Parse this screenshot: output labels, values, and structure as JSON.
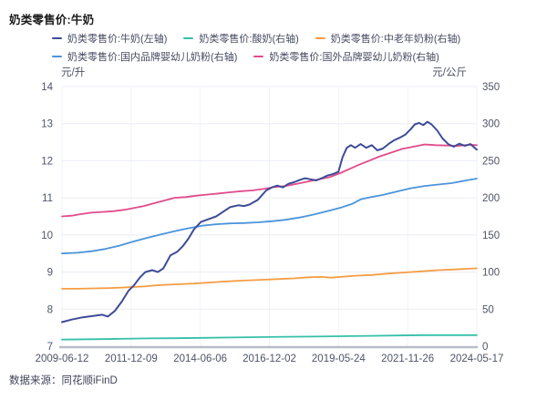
{
  "page": {
    "title": "奶类零售价:牛奶",
    "source": "数据来源：同花顺iFinD"
  },
  "chart_data": {
    "type": "line",
    "title": "奶类零售价:牛奶",
    "legend_position": "top",
    "grid": true,
    "x_ticks": [
      "2009-06-12",
      "2011-12-09",
      "2014-06-06",
      "2016-12-02",
      "2019-05-24",
      "2021-11-26",
      "2024-05-17"
    ],
    "x_range": [
      2009.45,
      2024.38
    ],
    "y_left": {
      "unit": "元/升",
      "min": 7,
      "max": 14,
      "step": 1
    },
    "y_right": {
      "unit": "元/公斤",
      "min": 0,
      "max": 350,
      "step": 50
    },
    "series": [
      {
        "name": "奶类零售价:牛奶(左轴)",
        "axis": "left",
        "unit": "元/升",
        "color": "#3e4b97",
        "points": [
          [
            2009.45,
            7.65
          ],
          [
            2009.8,
            7.72
          ],
          [
            2010.2,
            7.78
          ],
          [
            2010.6,
            7.82
          ],
          [
            2010.9,
            7.85
          ],
          [
            2011.1,
            7.8
          ],
          [
            2011.35,
            7.95
          ],
          [
            2011.6,
            8.2
          ],
          [
            2011.85,
            8.5
          ],
          [
            2012.05,
            8.65
          ],
          [
            2012.25,
            8.85
          ],
          [
            2012.45,
            9.0
          ],
          [
            2012.7,
            9.05
          ],
          [
            2012.9,
            9.0
          ],
          [
            2013.1,
            9.1
          ],
          [
            2013.35,
            9.45
          ],
          [
            2013.6,
            9.55
          ],
          [
            2013.8,
            9.7
          ],
          [
            2014.0,
            9.9
          ],
          [
            2014.2,
            10.15
          ],
          [
            2014.45,
            10.35
          ],
          [
            2014.7,
            10.42
          ],
          [
            2015.0,
            10.5
          ],
          [
            2015.2,
            10.6
          ],
          [
            2015.5,
            10.75
          ],
          [
            2015.8,
            10.8
          ],
          [
            2016.0,
            10.78
          ],
          [
            2016.2,
            10.82
          ],
          [
            2016.5,
            10.95
          ],
          [
            2016.8,
            11.2
          ],
          [
            2017.0,
            11.28
          ],
          [
            2017.2,
            11.33
          ],
          [
            2017.4,
            11.28
          ],
          [
            2017.6,
            11.38
          ],
          [
            2017.8,
            11.42
          ],
          [
            2018.0,
            11.48
          ],
          [
            2018.2,
            11.53
          ],
          [
            2018.4,
            11.5
          ],
          [
            2018.6,
            11.47
          ],
          [
            2018.8,
            11.53
          ],
          [
            2019.0,
            11.6
          ],
          [
            2019.2,
            11.64
          ],
          [
            2019.4,
            11.7
          ],
          [
            2019.55,
            12.1
          ],
          [
            2019.7,
            12.35
          ],
          [
            2019.85,
            12.42
          ],
          [
            2020.0,
            12.35
          ],
          [
            2020.2,
            12.45
          ],
          [
            2020.4,
            12.35
          ],
          [
            2020.6,
            12.42
          ],
          [
            2020.8,
            12.28
          ],
          [
            2021.0,
            12.33
          ],
          [
            2021.2,
            12.45
          ],
          [
            2021.4,
            12.55
          ],
          [
            2021.6,
            12.62
          ],
          [
            2021.8,
            12.7
          ],
          [
            2022.0,
            12.85
          ],
          [
            2022.15,
            12.98
          ],
          [
            2022.3,
            13.02
          ],
          [
            2022.45,
            12.96
          ],
          [
            2022.6,
            13.05
          ],
          [
            2022.75,
            12.98
          ],
          [
            2022.95,
            12.82
          ],
          [
            2023.15,
            12.6
          ],
          [
            2023.35,
            12.45
          ],
          [
            2023.55,
            12.38
          ],
          [
            2023.75,
            12.46
          ],
          [
            2023.95,
            12.4
          ],
          [
            2024.15,
            12.45
          ],
          [
            2024.38,
            12.3
          ]
        ]
      },
      {
        "name": "奶类零售价:酸奶(右轴)",
        "axis": "right",
        "unit": "元/公斤",
        "color": "#35c0a9",
        "points": [
          [
            2009.45,
            9
          ],
          [
            2010.5,
            9.5
          ],
          [
            2011.5,
            10
          ],
          [
            2012.5,
            10.5
          ],
          [
            2013.5,
            10.8
          ],
          [
            2014.5,
            11.3
          ],
          [
            2015.5,
            11.8
          ],
          [
            2016.5,
            12.3
          ],
          [
            2017.5,
            12.8
          ],
          [
            2018.5,
            13
          ],
          [
            2019.5,
            13.5
          ],
          [
            2020.5,
            14
          ],
          [
            2021.5,
            14.5
          ],
          [
            2022.5,
            15
          ],
          [
            2023.5,
            15
          ],
          [
            2024.38,
            15
          ]
        ]
      },
      {
        "name": "奶类零售价:中老年奶粉(右轴)",
        "axis": "right",
        "unit": "元/公斤",
        "color": "#f49d45",
        "points": [
          [
            2009.45,
            77.5
          ],
          [
            2010.0,
            77.5
          ],
          [
            2010.6,
            78
          ],
          [
            2011.2,
            78.5
          ],
          [
            2011.8,
            79.5
          ],
          [
            2012.4,
            80.5
          ],
          [
            2013.0,
            82.5
          ],
          [
            2013.6,
            83.5
          ],
          [
            2014.2,
            84.5
          ],
          [
            2014.8,
            86
          ],
          [
            2015.4,
            87.5
          ],
          [
            2016.0,
            88.5
          ],
          [
            2016.6,
            89.5
          ],
          [
            2017.2,
            90.5
          ],
          [
            2017.8,
            91.5
          ],
          [
            2018.3,
            93
          ],
          [
            2018.8,
            93.5
          ],
          [
            2019.1,
            92.5
          ],
          [
            2019.5,
            93.5
          ],
          [
            2020.0,
            95
          ],
          [
            2020.6,
            96
          ],
          [
            2021.2,
            98
          ],
          [
            2021.8,
            99.5
          ],
          [
            2022.4,
            101
          ],
          [
            2023.0,
            102.5
          ],
          [
            2023.6,
            103.5
          ],
          [
            2024.1,
            104.5
          ],
          [
            2024.38,
            105
          ]
        ]
      },
      {
        "name": "奶类零售价:国内品牌婴幼儿奶粉(右轴)",
        "axis": "right",
        "unit": "元/公斤",
        "color": "#4b94db",
        "points": [
          [
            2009.45,
            125
          ],
          [
            2010.0,
            126
          ],
          [
            2010.5,
            128
          ],
          [
            2011.0,
            131
          ],
          [
            2011.5,
            135.5
          ],
          [
            2012.0,
            141
          ],
          [
            2012.5,
            146
          ],
          [
            2013.0,
            150.5
          ],
          [
            2013.5,
            155
          ],
          [
            2014.0,
            159
          ],
          [
            2014.5,
            162.5
          ],
          [
            2015.0,
            164.5
          ],
          [
            2015.5,
            165.5
          ],
          [
            2016.0,
            166
          ],
          [
            2016.5,
            167
          ],
          [
            2017.0,
            168.5
          ],
          [
            2017.5,
            170.5
          ],
          [
            2018.0,
            173.5
          ],
          [
            2018.5,
            177.5
          ],
          [
            2019.0,
            182
          ],
          [
            2019.5,
            187
          ],
          [
            2019.9,
            192
          ],
          [
            2020.2,
            198
          ],
          [
            2020.5,
            200.5
          ],
          [
            2021.0,
            204
          ],
          [
            2021.5,
            208.5
          ],
          [
            2022.0,
            213
          ],
          [
            2022.5,
            216
          ],
          [
            2023.0,
            218
          ],
          [
            2023.5,
            220
          ],
          [
            2024.0,
            223.5
          ],
          [
            2024.38,
            226
          ]
        ]
      },
      {
        "name": "奶类零售价:国外品牌婴幼儿奶粉(右轴)",
        "axis": "right",
        "unit": "元/公斤",
        "color": "#e14b8a",
        "points": [
          [
            2009.45,
            175
          ],
          [
            2009.8,
            176
          ],
          [
            2010.1,
            178
          ],
          [
            2010.5,
            180
          ],
          [
            2010.9,
            181
          ],
          [
            2011.3,
            182
          ],
          [
            2011.7,
            184
          ],
          [
            2012.0,
            186
          ],
          [
            2012.4,
            189
          ],
          [
            2012.8,
            193
          ],
          [
            2013.1,
            196
          ],
          [
            2013.5,
            200
          ],
          [
            2013.9,
            201
          ],
          [
            2014.3,
            203
          ],
          [
            2014.7,
            204.5
          ],
          [
            2015.1,
            206
          ],
          [
            2015.5,
            207.5
          ],
          [
            2015.9,
            209
          ],
          [
            2016.3,
            210
          ],
          [
            2016.7,
            212
          ],
          [
            2017.1,
            214.5
          ],
          [
            2017.5,
            216
          ],
          [
            2017.9,
            219
          ],
          [
            2018.3,
            222
          ],
          [
            2018.7,
            225
          ],
          [
            2019.1,
            228
          ],
          [
            2019.5,
            234
          ],
          [
            2019.8,
            239
          ],
          [
            2020.1,
            244
          ],
          [
            2020.5,
            250
          ],
          [
            2020.9,
            256
          ],
          [
            2021.3,
            261
          ],
          [
            2021.7,
            266
          ],
          [
            2022.1,
            269
          ],
          [
            2022.5,
            272
          ],
          [
            2022.9,
            271
          ],
          [
            2023.3,
            270.5
          ],
          [
            2023.7,
            270
          ],
          [
            2024.1,
            271.5
          ],
          [
            2024.38,
            271
          ]
        ]
      }
    ]
  }
}
